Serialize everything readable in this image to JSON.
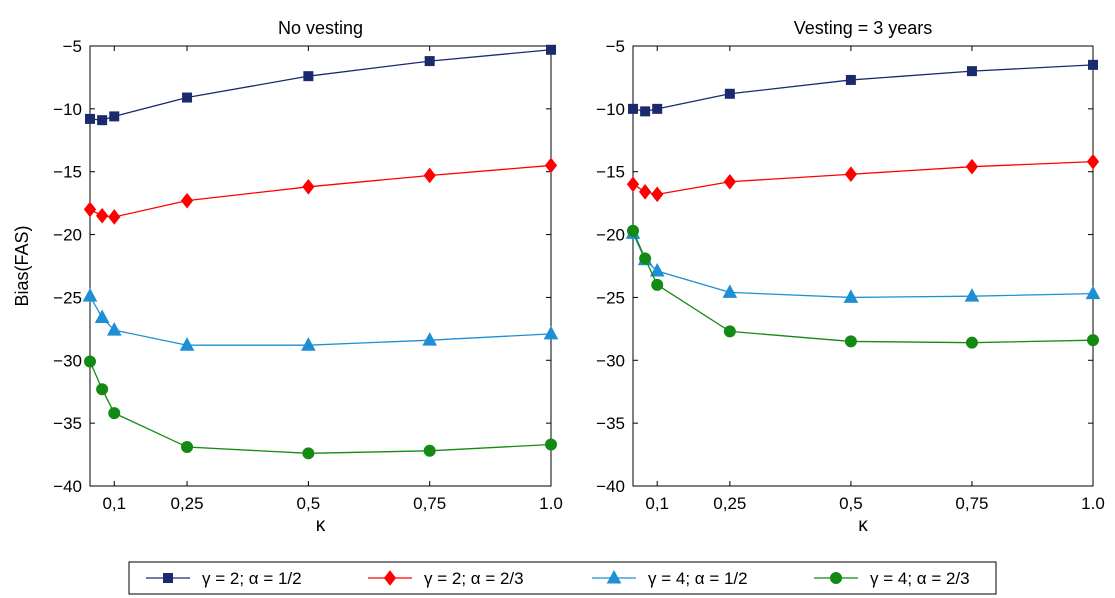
{
  "chart_data": [
    {
      "type": "line",
      "title": "No vesting",
      "xlabel": "κ",
      "ylabel": "Bias(FAS)",
      "x": [
        0.05,
        0.075,
        0.1,
        0.25,
        0.5,
        0.75,
        1.0
      ],
      "xlim": [
        0.05,
        1.0
      ],
      "ylim": [
        -40,
        -5
      ],
      "xticks": [
        0.1,
        0.25,
        0.5,
        0.75,
        1.0
      ],
      "xtick_labels": [
        "0,1",
        "0,25",
        "0,5",
        "0,75",
        "1.0"
      ],
      "yticks": [
        -40,
        -35,
        -30,
        -25,
        -20,
        -15,
        -10,
        -5
      ],
      "ytick_labels": [
        "−40",
        "−35",
        "−30",
        "−25",
        "−20",
        "−15",
        "−10",
        "−5"
      ],
      "series": [
        {
          "name": "γ = 2; α = 1/2",
          "color": "#1a2a6c",
          "marker": "square",
          "values": [
            -10.8,
            -10.9,
            -10.6,
            -9.1,
            -7.4,
            -6.2,
            -5.3
          ]
        },
        {
          "name": "γ = 2; α = 2/3",
          "color": "#ff0000",
          "marker": "diamond",
          "values": [
            -18.0,
            -18.5,
            -18.6,
            -17.3,
            -16.2,
            -15.3,
            -14.5
          ]
        },
        {
          "name": "γ = 4; α = 1/2",
          "color": "#1f8fd4",
          "marker": "triangle",
          "values": [
            -24.9,
            -26.6,
            -27.6,
            -28.8,
            -28.8,
            -28.4,
            -27.9
          ]
        },
        {
          "name": "γ = 4; α = 2/3",
          "color": "#138a13",
          "marker": "circle",
          "values": [
            -30.1,
            -32.3,
            -34.2,
            -36.9,
            -37.4,
            -37.2,
            -36.7
          ]
        }
      ]
    },
    {
      "type": "line",
      "title": "Vesting = 3 years",
      "xlabel": "κ",
      "ylabel": "",
      "x": [
        0.05,
        0.075,
        0.1,
        0.25,
        0.5,
        0.75,
        1.0
      ],
      "xlim": [
        0.05,
        1.0
      ],
      "ylim": [
        -40,
        -5
      ],
      "xticks": [
        0.1,
        0.25,
        0.5,
        0.75,
        1.0
      ],
      "xtick_labels": [
        "0,1",
        "0,25",
        "0,5",
        "0,75",
        "1.0"
      ],
      "yticks": [
        -40,
        -35,
        -30,
        -25,
        -20,
        -15,
        -10,
        -5
      ],
      "ytick_labels": [
        "−40",
        "−35",
        "−30",
        "−25",
        "−20",
        "−15",
        "−10",
        "−5"
      ],
      "series": [
        {
          "name": "γ = 2; α = 1/2",
          "color": "#1a2a6c",
          "marker": "square",
          "values": [
            -10.0,
            -10.2,
            -10.0,
            -8.8,
            -7.7,
            -7.0,
            -6.5
          ]
        },
        {
          "name": "γ = 2; α = 2/3",
          "color": "#ff0000",
          "marker": "diamond",
          "values": [
            -16.0,
            -16.6,
            -16.8,
            -15.8,
            -15.2,
            -14.6,
            -14.2
          ]
        },
        {
          "name": "γ = 4; α = 1/2",
          "color": "#1f8fd4",
          "marker": "triangle",
          "values": [
            -19.9,
            -22.0,
            -22.9,
            -24.6,
            -25.0,
            -24.9,
            -24.7
          ]
        },
        {
          "name": "γ = 4; α = 2/3",
          "color": "#138a13",
          "marker": "circle",
          "values": [
            -19.7,
            -21.9,
            -24.0,
            -27.7,
            -28.5,
            -28.6,
            -28.4
          ]
        }
      ]
    }
  ],
  "legend": {
    "placement": "bottom-center",
    "items": [
      {
        "label": "γ = 2; α = 1/2",
        "color": "#1a2a6c",
        "marker": "square"
      },
      {
        "label": "γ = 2; α = 2/3",
        "color": "#ff0000",
        "marker": "diamond"
      },
      {
        "label": "γ = 4; α = 1/2",
        "color": "#1f8fd4",
        "marker": "triangle"
      },
      {
        "label": "γ = 4; α = 2/3",
        "color": "#138a13",
        "marker": "circle"
      }
    ]
  }
}
